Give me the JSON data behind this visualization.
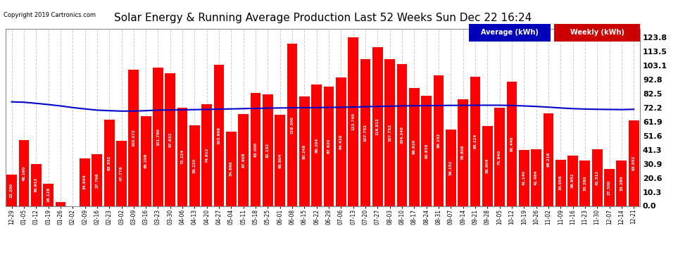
{
  "title": "Solar Energy & Running Average Production Last 52 Weeks Sun Dec 22 16:24",
  "copyright": "Copyright 2019 Cartronics.com",
  "bar_color": "#ff0000",
  "line_color": "#0000cc",
  "bg_color": "#ffffff",
  "grid_color": "#cccccc",
  "ylim": [
    0,
    130
  ],
  "ytick_values": [
    0.0,
    10.3,
    20.6,
    30.9,
    41.3,
    51.6,
    61.9,
    72.2,
    82.5,
    92.8,
    103.1,
    113.5,
    123.8
  ],
  "ytick_labels": [
    "0.0",
    "10.3",
    "20.6",
    "30.9",
    "41.3",
    "51.6",
    "61.9",
    "72.2",
    "82.5",
    "92.8",
    "103.1",
    "113.5",
    "123.8"
  ],
  "categories": [
    "12-29",
    "01-05",
    "01-12",
    "01-19",
    "01-26",
    "02-02",
    "02-09",
    "02-16",
    "02-23",
    "03-02",
    "03-09",
    "03-16",
    "03-23",
    "03-30",
    "04-06",
    "04-13",
    "04-20",
    "04-27",
    "05-04",
    "05-11",
    "05-18",
    "05-25",
    "06-01",
    "06-08",
    "06-15",
    "06-22",
    "06-29",
    "07-06",
    "07-13",
    "07-20",
    "07-27",
    "08-03",
    "08-10",
    "08-17",
    "08-24",
    "08-31",
    "09-07",
    "09-14",
    "09-21",
    "09-28",
    "10-05",
    "10-12",
    "10-19",
    "10-26",
    "11-02",
    "11-09",
    "11-16",
    "11-23",
    "11-30",
    "12-07",
    "12-14",
    "12-21"
  ],
  "weekly_values": [
    23.2,
    48.16,
    30.912,
    16.128,
    3.012,
    0.0,
    34.944,
    37.796,
    63.552,
    47.776,
    100.272,
    66.208,
    101.78,
    97.632,
    72.224,
    59.22,
    74.912,
    103.908,
    54.668,
    67.608,
    83.0,
    82.152,
    66.804,
    119.3,
    80.248,
    89.204,
    87.62,
    94.42,
    123.74,
    107.752,
    116.812,
    107.752,
    104.24,
    86.92,
    80.856,
    96.152,
    56.152,
    78.606,
    95.124,
    58.904,
    71.94,
    91.44,
    41.14,
    41.484,
    68.216,
    34.056,
    36.952,
    33.28,
    41.512,
    27.3,
    33.28,
    63.052
  ],
  "average_values": [
    76.5,
    76.2,
    75.4,
    74.5,
    73.5,
    72.3,
    71.3,
    70.4,
    70.0,
    69.7,
    69.7,
    70.0,
    70.4,
    70.5,
    70.6,
    70.8,
    70.9,
    71.1,
    71.3,
    71.5,
    71.7,
    71.9,
    72.0,
    72.1,
    72.2,
    72.3,
    72.4,
    72.5,
    72.7,
    72.9,
    73.1,
    73.3,
    73.5,
    73.6,
    73.7,
    73.8,
    73.9,
    73.9,
    74.0,
    74.0,
    74.0,
    73.8,
    73.5,
    73.1,
    72.6,
    72.0,
    71.5,
    71.2,
    71.0,
    70.9,
    70.8,
    71.0
  ],
  "legend_avg_bg": "#0000bb",
  "legend_weekly_bg": "#cc0000",
  "legend_avg_label": "Average (kWh)",
  "legend_weekly_label": "Weekly (kWh)"
}
